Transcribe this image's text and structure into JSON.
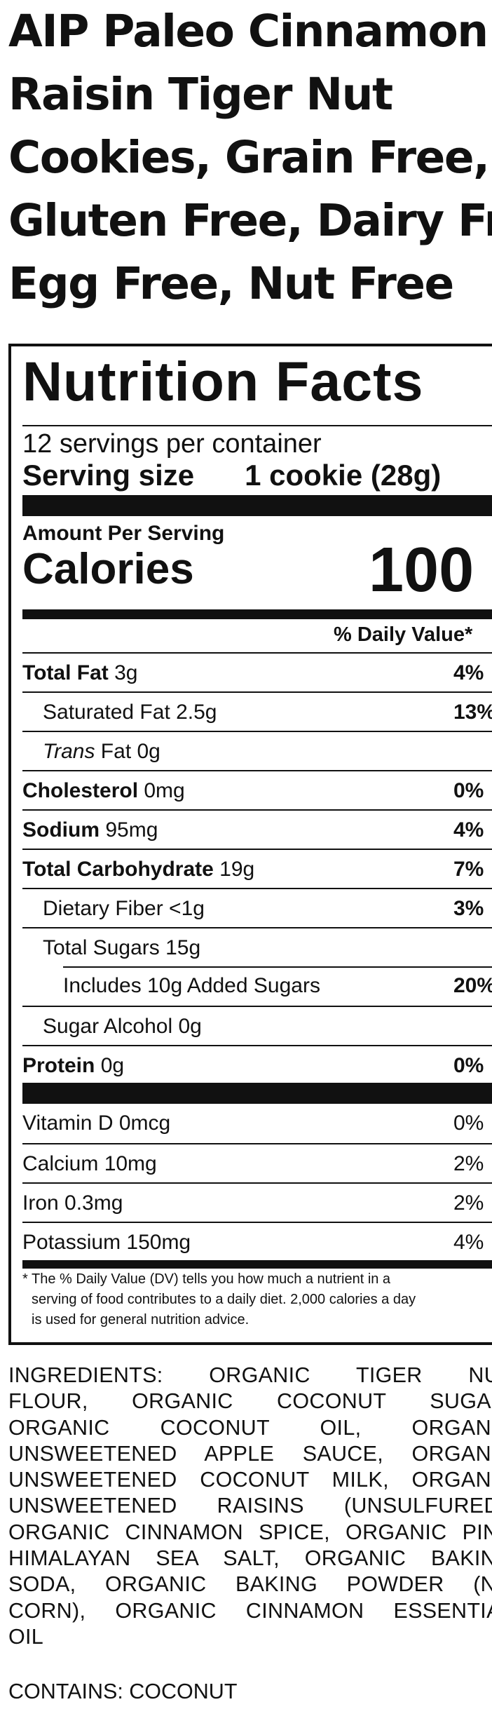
{
  "product_title_lines": [
    "AIP Paleo Cinnamon &",
    "Raisin Tiger Nut",
    "Cookies, Grain Free,",
    "Gluten Free, Dairy Free,",
    "Egg Free, Nut Free"
  ],
  "nutrition": {
    "heading": "Nutrition Facts",
    "servings_per_container": "12 servings per container",
    "serving_size_label": "Serving size",
    "serving_size_value": "1 cookie (28g)",
    "amount_per_serving": "Amount Per Serving",
    "calories_label": "Calories",
    "calories_value": "100",
    "daily_value_header": "% Daily Value*",
    "rows": [
      {
        "label": "Total Fat",
        "amount": " 3g",
        "dv": "4%"
      },
      {
        "label": "Saturated Fat 2.5g",
        "amount": "",
        "dv": "13%"
      },
      {
        "label": "Trans",
        "amount": " Fat 0g",
        "dv": ""
      },
      {
        "label": "Cholesterol",
        "amount": " 0mg",
        "dv": "0%"
      },
      {
        "label": "Sodium",
        "amount": " 95mg",
        "dv": "4%"
      },
      {
        "label": "Total Carbohydrate",
        "amount": " 19g",
        "dv": "7%"
      },
      {
        "label": "Dietary Fiber <1g",
        "amount": "",
        "dv": "3%"
      },
      {
        "label": "Total Sugars 15g",
        "amount": "",
        "dv": ""
      },
      {
        "label": "Includes 10g Added Sugars",
        "amount": "",
        "dv": "20%"
      },
      {
        "label": "Sugar Alcohol 0g",
        "amount": "",
        "dv": ""
      },
      {
        "label": "Protein",
        "amount": " 0g",
        "dv": "0%"
      }
    ],
    "vitamins": [
      {
        "label": "Vitamin D 0mcg",
        "dv": "0%"
      },
      {
        "label": "Calcium 10mg",
        "dv": "2%"
      },
      {
        "label": "Iron 0.3mg",
        "dv": "2%"
      },
      {
        "label": "Potassium 150mg",
        "dv": "4%"
      }
    ],
    "footnote_lines": [
      "* The % Daily Value (DV) tells you how much a nutrient in a",
      "serving of food contributes to a daily diet. 2,000 calories a day",
      "is used for general nutrition advice."
    ]
  },
  "ingredients_lines": [
    "INGREDIENTS: ORGANIC TIGER NUT",
    "FLOUR, ORGANIC COCONUT SUGAR,",
    "ORGANIC COCONUT OIL, ORGANIC",
    "UNSWEETENED APPLE SAUCE, ORGANIC",
    "UNSWEETENED COCONUT MILK, ORGANIC",
    "UNSWEETENED RAISINS (UNSULFURED),",
    "ORGANIC CINNAMON SPICE, ORGANIC PINK",
    "HIMALAYAN SEA SALT, ORGANIC BAKING",
    "SODA, ORGANIC BAKING POWDER (NO",
    "CORN), ORGANIC CINNAMON ESSENTIAL",
    "OIL"
  ],
  "contains": "CONTAINS: COCONUT"
}
